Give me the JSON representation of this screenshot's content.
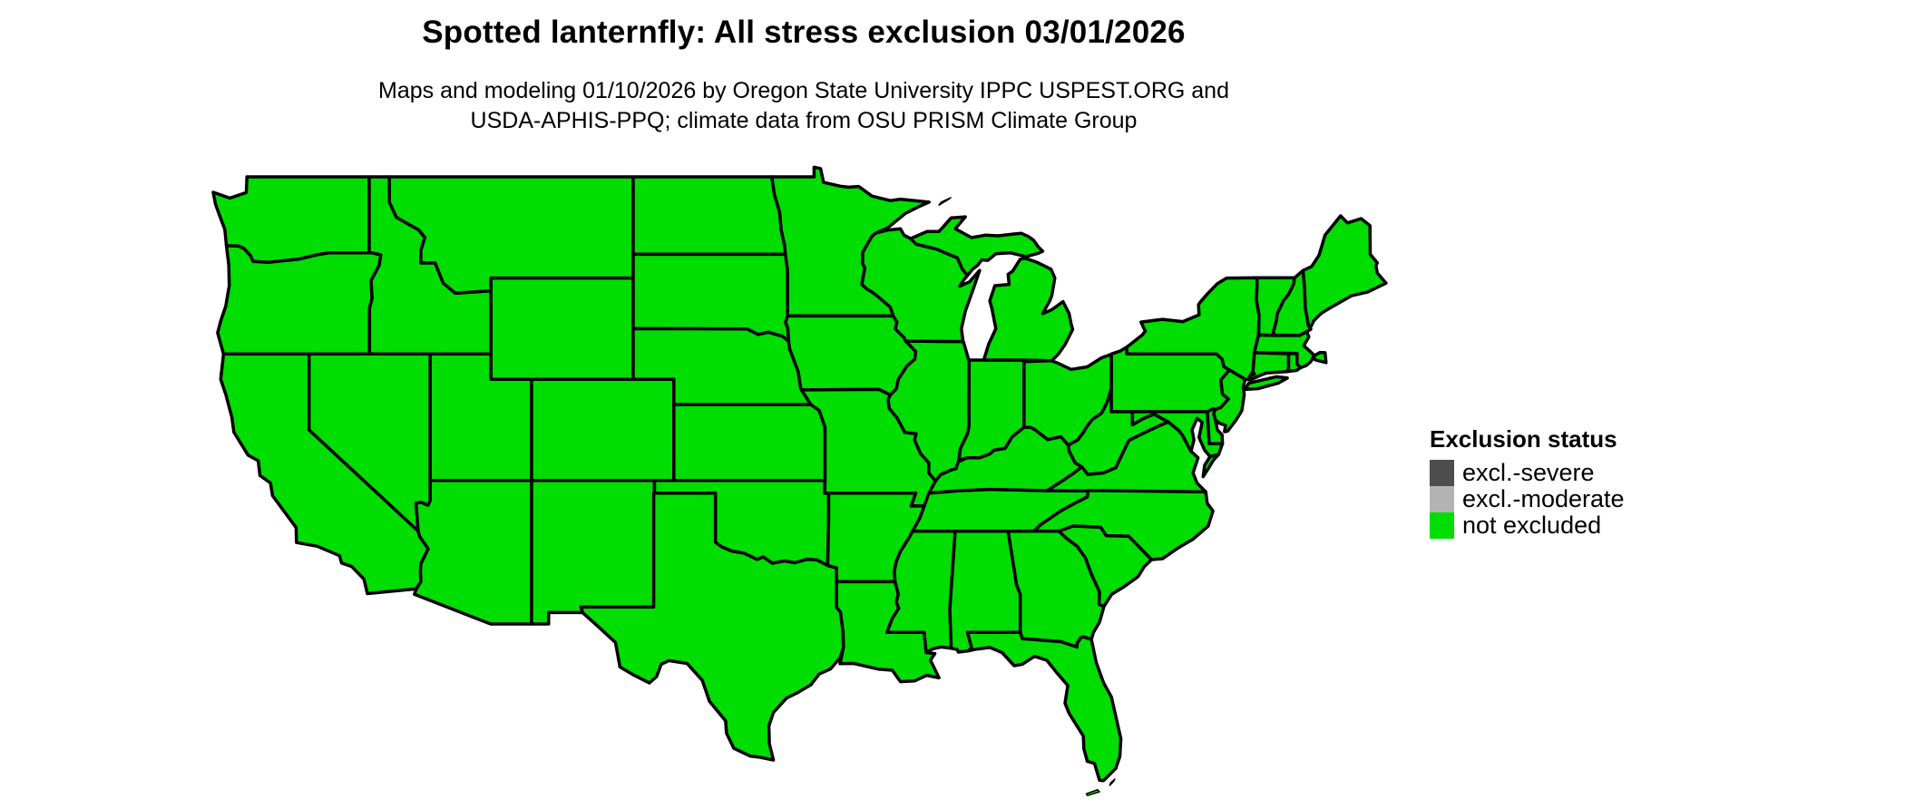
{
  "title": "Spotted lanternfly: All stress exclusion 03/01/2026",
  "subtitle": {
    "line1": "Maps and modeling 01/10/2026 by Oregon State University IPPC USPEST.ORG and",
    "line2": "USDA-APHIS-PPQ; climate data from OSU PRISM Climate Group"
  },
  "legend": {
    "title": "Exclusion status",
    "items": [
      {
        "label": "excl.-severe",
        "color": "#4d4d4d"
      },
      {
        "label": "excl.-moderate",
        "color": "#b3b3b3"
      },
      {
        "label": "not excluded",
        "color": "#00dd00"
      }
    ]
  },
  "map": {
    "region": "contiguous United States",
    "status_of_all_states": "not excluded",
    "fill_color": "#00dd00",
    "border_color": "#000000",
    "background_color": "#ffffff"
  }
}
